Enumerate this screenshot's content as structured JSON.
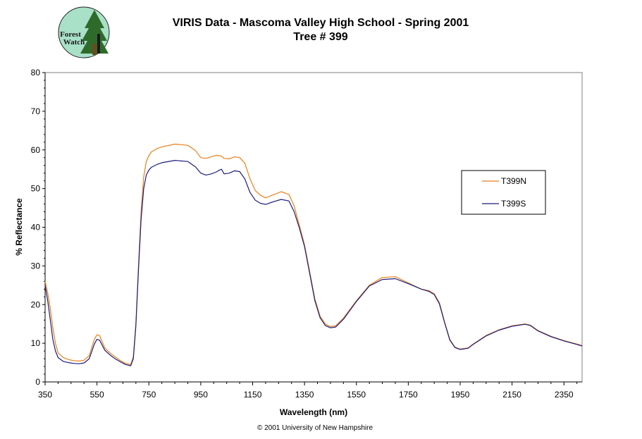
{
  "logo": {
    "line1": "Forest",
    "line2": "Watch"
  },
  "copyright": "© 2001 University of New Hampshire",
  "chart_data": {
    "type": "line",
    "title": "VIRIS Data - Mascoma Valley High School - Spring 2001",
    "subtitle": "Tree # 399",
    "xlabel": "Wavelength (nm)",
    "ylabel": "% Reflectance",
    "xlim": [
      350,
      2420
    ],
    "ylim": [
      0,
      80
    ],
    "xticks": [
      350,
      550,
      750,
      950,
      1150,
      1350,
      1550,
      1750,
      1950,
      2150,
      2350
    ],
    "yticks": [
      0,
      10,
      20,
      30,
      40,
      50,
      60,
      70,
      80
    ],
    "grid": false,
    "legend": "right",
    "series": [
      {
        "name": "T399N",
        "color": "#e8801a",
        "x": [
          350,
          360,
          370,
          380,
          390,
          400,
          420,
          440,
          460,
          480,
          500,
          520,
          540,
          550,
          560,
          580,
          600,
          620,
          640,
          660,
          680,
          690,
          700,
          710,
          720,
          730,
          740,
          750,
          760,
          780,
          800,
          850,
          900,
          930,
          950,
          970,
          990,
          1010,
          1030,
          1040,
          1060,
          1080,
          1100,
          1120,
          1140,
          1160,
          1180,
          1200,
          1230,
          1260,
          1290,
          1310,
          1330,
          1350,
          1370,
          1390,
          1410,
          1430,
          1450,
          1470,
          1500,
          1550,
          1600,
          1650,
          1700,
          1750,
          1800,
          1830,
          1850,
          1870,
          1890,
          1910,
          1930,
          1950,
          1980,
          2000,
          2050,
          2100,
          2150,
          2200,
          2220,
          2250,
          2300,
          2350,
          2400,
          2420
        ],
        "y": [
          26,
          23,
          19,
          14,
          10,
          7.5,
          6.3,
          5.8,
          5.5,
          5.4,
          5.6,
          6.8,
          11,
          12.2,
          12,
          8.8,
          7.5,
          6.5,
          5.5,
          4.8,
          4.5,
          6.5,
          15,
          30,
          44,
          53,
          57,
          58.5,
          59.5,
          60.3,
          60.8,
          61.5,
          61.2,
          59.8,
          58,
          57.8,
          58.2,
          58.6,
          58.4,
          57.8,
          57.7,
          58.2,
          58,
          56.6,
          52.5,
          49.5,
          48.3,
          47.6,
          48.4,
          49.2,
          48.5,
          45.5,
          40.5,
          35.5,
          28.5,
          21.5,
          17,
          15,
          14.3,
          14.5,
          16.5,
          21,
          25,
          27,
          27.2,
          25.6,
          24,
          23.6,
          22.8,
          20.5,
          15.5,
          11,
          9,
          8.5,
          8.8,
          9.8,
          12,
          13.5,
          14.5,
          15,
          14.7,
          13.3,
          11.8,
          10.7,
          9.8,
          9.4
        ]
      },
      {
        "name": "T399S",
        "color": "#1c1c7e",
        "x": [
          350,
          360,
          370,
          380,
          390,
          400,
          420,
          440,
          460,
          480,
          500,
          520,
          540,
          550,
          560,
          580,
          600,
          620,
          640,
          660,
          680,
          690,
          700,
          710,
          720,
          730,
          740,
          750,
          760,
          780,
          800,
          850,
          900,
          930,
          950,
          970,
          990,
          1010,
          1020,
          1030,
          1040,
          1060,
          1080,
          1100,
          1120,
          1140,
          1160,
          1180,
          1200,
          1230,
          1260,
          1290,
          1310,
          1330,
          1350,
          1370,
          1390,
          1410,
          1430,
          1450,
          1470,
          1500,
          1550,
          1600,
          1650,
          1700,
          1750,
          1800,
          1830,
          1850,
          1870,
          1890,
          1910,
          1930,
          1950,
          1980,
          2000,
          2050,
          2100,
          2150,
          2200,
          2220,
          2250,
          2300,
          2350,
          2400,
          2420
        ],
        "y": [
          25,
          21,
          16,
          11,
          8,
          6.3,
          5.3,
          5,
          4.8,
          4.7,
          4.9,
          6,
          9.8,
          11,
          10.8,
          8.2,
          7,
          6,
          5.2,
          4.5,
          4.2,
          6,
          14.5,
          29,
          42,
          50,
          53.5,
          54.8,
          55.5,
          56.2,
          56.7,
          57.3,
          57,
          55.6,
          54,
          53.5,
          53.8,
          54.3,
          54.7,
          55,
          53.8,
          54,
          54.6,
          54.4,
          52.5,
          49,
          47,
          46.2,
          45.9,
          46.6,
          47.2,
          46.8,
          44,
          39.8,
          35,
          28,
          21,
          16.6,
          14.6,
          14,
          14.2,
          16.2,
          20.8,
          24.8,
          26.5,
          26.7,
          25.4,
          24,
          23.4,
          22.6,
          20.2,
          15.3,
          10.8,
          8.9,
          8.4,
          8.7,
          9.7,
          11.9,
          13.4,
          14.4,
          14.9,
          14.6,
          13.2,
          11.7,
          10.6,
          9.7,
          9.3
        ]
      }
    ]
  }
}
